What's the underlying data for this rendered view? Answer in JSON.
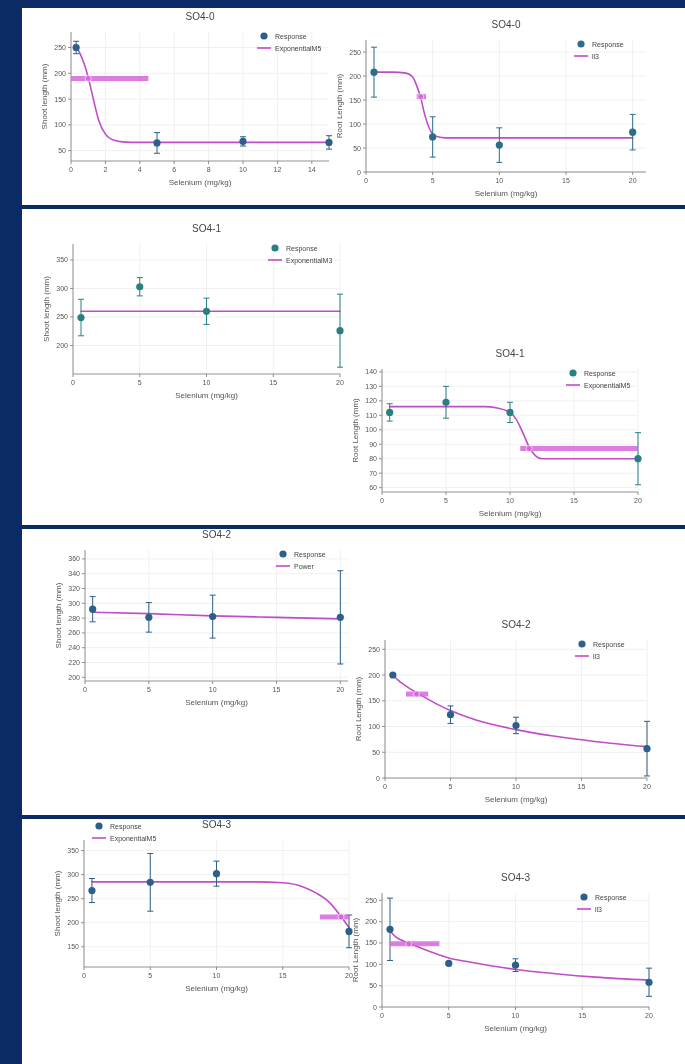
{
  "chart_data": [
    {
      "type": "scatter",
      "title": "SO4-0",
      "xlabel": "Selenium (mg/kg)",
      "ylabel": "Shoot length (mm)",
      "xlim": [
        0,
        15
      ],
      "xticks": [
        0,
        2,
        4,
        6,
        8,
        10,
        12,
        14
      ],
      "ylim": [
        30,
        280
      ],
      "yticks": [
        50,
        100,
        150,
        200,
        250
      ],
      "grid": true,
      "legend": "top right",
      "series": [
        {
          "name": "Response",
          "type": "scatter",
          "marker": "circle",
          "color": "#2c5f8a",
          "x": [
            0.3,
            5,
            10,
            15
          ],
          "values": [
            250,
            65,
            68,
            66
          ],
          "errors": [
            12,
            20,
            9,
            13
          ]
        },
        {
          "name": "ExponentialM5",
          "type": "line",
          "color": "#c04cc8",
          "x": [
            0.2,
            0.5,
            0.8,
            1.0,
            1.3,
            1.6,
            2.0,
            2.5,
            3,
            4,
            15
          ],
          "values": [
            255,
            240,
            215,
            192,
            150,
            110,
            82,
            70,
            67,
            66,
            66
          ]
        },
        {
          "type": "scatter",
          "marker": "circle",
          "color": "#d668dc",
          "x": [
            1
          ],
          "values": [
            190
          ],
          "xerrors": [
            [
              0,
              4.5
            ]
          ]
        }
      ]
    },
    {
      "type": "scatter",
      "title": "SO4-0",
      "xlabel": "Selenium (mg/kg)",
      "ylabel": "Root Length (mm)",
      "xlim": [
        0,
        21
      ],
      "xticks": [
        0,
        5,
        10,
        15,
        20
      ],
      "ylim": [
        0,
        275
      ],
      "yticks": [
        0,
        50,
        100,
        150,
        200,
        250
      ],
      "grid": true,
      "legend": "top right",
      "series": [
        {
          "name": "Response",
          "type": "scatter",
          "marker": "circle",
          "color": "#2a6f86",
          "x": [
            0.6,
            5,
            10,
            20
          ],
          "values": [
            208,
            73,
            56,
            83
          ],
          "errors": [
            52,
            42,
            36,
            37
          ]
        },
        {
          "name": "ll3",
          "type": "line",
          "color": "#c04cc8",
          "x": [
            0.6,
            2,
            3,
            3.5,
            3.8,
            4.1,
            4.4,
            4.8,
            5.3,
            6,
            20
          ],
          "values": [
            208,
            208,
            206,
            198,
            180,
            155,
            120,
            88,
            74,
            71,
            71
          ]
        },
        {
          "type": "scatter",
          "marker": "circle",
          "color": "#d668dc",
          "x": [
            4.1
          ],
          "values": [
            157
          ],
          "xerrors": [
            [
              3.8,
              4.5
            ]
          ]
        }
      ]
    },
    {
      "type": "scatter",
      "title": "SO4-1",
      "xlabel": "Selenium (mg/kg)",
      "ylabel": "Shoot length (mm)",
      "xlim": [
        0,
        20
      ],
      "xticks": [
        0,
        5,
        10,
        15,
        20
      ],
      "ylim": [
        150,
        378
      ],
      "yticks": [
        200,
        250,
        300,
        350
      ],
      "grid": true,
      "legend": "top right",
      "series": [
        {
          "name": "Response",
          "type": "scatter",
          "marker": "circle",
          "color": "#2a7f80",
          "x": [
            0.6,
            5,
            10,
            20
          ],
          "values": [
            249,
            303,
            260,
            226
          ],
          "errors": [
            32,
            16,
            23,
            64
          ]
        },
        {
          "name": "ExponentialM3",
          "type": "line",
          "color": "#c04cc8",
          "x": [
            0.6,
            20
          ],
          "values": [
            260,
            260
          ]
        }
      ]
    },
    {
      "type": "scatter",
      "title": "SO4-1",
      "xlabel": "Selenium (mg/kg)",
      "ylabel": "Root Length (mm)",
      "xlim": [
        0,
        20
      ],
      "xticks": [
        0,
        5,
        10,
        15,
        20
      ],
      "ylim": [
        57,
        142
      ],
      "yticks": [
        60,
        70,
        80,
        90,
        100,
        110,
        120,
        130,
        140
      ],
      "grid": true,
      "legend": "top right",
      "series": [
        {
          "name": "Response",
          "type": "scatter",
          "marker": "circle",
          "color": "#2a7f80",
          "x": [
            0.6,
            5,
            10,
            20
          ],
          "values": [
            112,
            119,
            112,
            80
          ],
          "errors": [
            6,
            11,
            7,
            18
          ]
        },
        {
          "name": "ExponentialM5",
          "type": "line",
          "color": "#c04cc8",
          "x": [
            0.6,
            8,
            9,
            10,
            10.5,
            11,
            11.5,
            12,
            12.5,
            20
          ],
          "values": [
            116,
            116,
            115,
            112,
            107,
            98,
            88,
            82,
            80,
            80
          ]
        },
        {
          "type": "scatter",
          "marker": "circle",
          "color": "#d668dc",
          "x": [
            11.5
          ],
          "values": [
            87
          ],
          "xerrors": [
            [
              10.8,
              20
            ]
          ]
        }
      ]
    },
    {
      "type": "scatter",
      "title": "SO4-2",
      "xlabel": "Selenium (mg/kg)",
      "ylabel": "Shoot length (mm)",
      "xlim": [
        0,
        20.6
      ],
      "xticks": [
        0,
        5,
        10,
        15,
        20
      ],
      "ylim": [
        195,
        372
      ],
      "yticks": [
        200,
        220,
        240,
        260,
        280,
        300,
        320,
        340,
        360
      ],
      "grid": true,
      "legend": "top right",
      "series": [
        {
          "name": "Response",
          "type": "scatter",
          "marker": "circle",
          "color": "#2c5f8a",
          "x": [
            0.6,
            5,
            10,
            20
          ],
          "values": [
            292,
            281,
            282,
            281
          ],
          "errors": [
            17,
            20,
            29,
            63
          ]
        },
        {
          "name": "Power",
          "type": "line",
          "color": "#c04cc8",
          "x": [
            0.6,
            5,
            10,
            15,
            20
          ],
          "values": [
            288,
            286,
            283,
            281,
            279
          ]
        }
      ]
    },
    {
      "type": "scatter",
      "title": "SO4-2",
      "xlabel": "Selenium (mg/kg)",
      "ylabel": "Root Length (mm)",
      "xlim": [
        0,
        20
      ],
      "xticks": [
        0,
        5,
        10,
        15,
        20
      ],
      "ylim": [
        0,
        268
      ],
      "yticks": [
        0,
        50,
        100,
        150,
        200,
        250
      ],
      "grid": true,
      "legend": "top right",
      "series": [
        {
          "name": "Response",
          "type": "scatter",
          "marker": "circle",
          "color": "#2c5f8a",
          "x": [
            0.6,
            5,
            10,
            20
          ],
          "values": [
            200,
            123,
            102,
            57
          ],
          "errors": [
            2,
            17,
            16,
            53
          ]
        },
        {
          "name": "ll3",
          "type": "line",
          "color": "#c04cc8",
          "x": [
            0.6,
            1,
            2,
            3,
            4,
            5,
            7,
            10,
            13,
            16,
            20
          ],
          "values": [
            200,
            190,
            172,
            157,
            143,
            131,
            112,
            94,
            81,
            71,
            61
          ]
        },
        {
          "type": "scatter",
          "marker": "circle",
          "color": "#d668dc",
          "x": [
            2.4
          ],
          "values": [
            163
          ],
          "xerrors": [
            [
              1.6,
              3.3
            ]
          ]
        }
      ]
    },
    {
      "type": "scatter",
      "title": "SO4-3",
      "xlabel": "Selenium (mg/kg)",
      "ylabel": "Shoot length (mm)",
      "xlim": [
        0,
        20
      ],
      "xticks": [
        0,
        5,
        10,
        15,
        20
      ],
      "ylim": [
        108,
        372
      ],
      "yticks": [
        150,
        200,
        250,
        300,
        350
      ],
      "grid": true,
      "legend": "top left",
      "series": [
        {
          "name": "Response",
          "type": "scatter",
          "marker": "circle",
          "color": "#2c5f8a",
          "x": [
            0.6,
            5,
            10,
            20
          ],
          "values": [
            267,
            284,
            302,
            182
          ],
          "errors": [
            25,
            60,
            26,
            34
          ]
        },
        {
          "name": "ExponentialM5",
          "type": "line",
          "color": "#c04cc8",
          "x": [
            0.6,
            13,
            15,
            16.5,
            17.5,
            18.5,
            19.4,
            20
          ],
          "values": [
            285,
            285,
            283,
            275,
            262,
            243,
            213,
            190
          ]
        },
        {
          "type": "scatter",
          "marker": "circle",
          "color": "#d668dc",
          "x": [
            19.4
          ],
          "values": [
            212
          ],
          "xerrors": [
            [
              17.8,
              20
            ]
          ]
        }
      ]
    },
    {
      "type": "scatter",
      "title": "SO4-3",
      "xlabel": "Selenium (mg/kg)",
      "ylabel": "Root Length (mm)",
      "xlim": [
        0,
        20
      ],
      "xticks": [
        0,
        5,
        10,
        15,
        20
      ],
      "ylim": [
        0,
        267
      ],
      "yticks": [
        0,
        50,
        100,
        150,
        200,
        250
      ],
      "grid": true,
      "legend": "top right",
      "series": [
        {
          "name": "Response",
          "type": "scatter",
          "marker": "circle",
          "color": "#2c5f8a",
          "x": [
            0.6,
            5,
            10,
            20
          ],
          "values": [
            182,
            102,
            98,
            58
          ],
          "errors": [
            73,
            3,
            15,
            33
          ]
        },
        {
          "name": "ll3",
          "type": "line",
          "color": "#c04cc8",
          "x": [
            0.6,
            1,
            2,
            3,
            5,
            7,
            10,
            13,
            16,
            20
          ],
          "values": [
            178,
            165,
            150,
            137,
            115,
            103,
            88,
            78,
            70,
            63
          ]
        },
        {
          "type": "scatter",
          "marker": "circle",
          "color": "#d668dc",
          "x": [
            2
          ],
          "values": [
            148
          ],
          "xerrors": [
            [
              0.6,
              4.3
            ]
          ]
        }
      ]
    }
  ]
}
